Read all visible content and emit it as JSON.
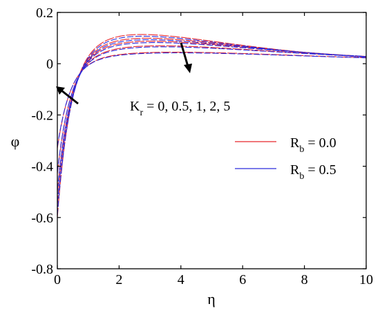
{
  "chart_data": {
    "type": "line",
    "xlabel": "η",
    "ylabel": "φ",
    "xlim": [
      0,
      10
    ],
    "ylim": [
      -0.8,
      0.2
    ],
    "x_ticks": [
      0,
      2,
      4,
      6,
      8,
      10
    ],
    "y_ticks": [
      -0.8,
      -0.6,
      -0.4,
      -0.2,
      0,
      0.2
    ],
    "x_tick_labels": [
      "0",
      "2",
      "4",
      "6",
      "8",
      "10"
    ],
    "y_tick_labels": [
      "-0.8",
      "-0.6",
      "-0.4",
      "-0.2",
      "0",
      "0.2"
    ],
    "grid": false,
    "legend_position": "right",
    "legend": [
      {
        "base": "R",
        "sub": "b",
        "rest": " = 0.0",
        "color": "#e8262b"
      },
      {
        "base": "R",
        "sub": "b",
        "rest": " = 0.5",
        "color": "#2a2adc"
      }
    ],
    "annotation": {
      "base": "K",
      "sub": "r",
      "rest": " = 0, 0.5, 1, 2, 5"
    },
    "curve_params": [
      {
        "k": 0,
        "phi0": -0.6,
        "peak": 0.115,
        "eta_peak": 2.6
      },
      {
        "k": 0.5,
        "phi0": -0.55,
        "peak": 0.1,
        "eta_peak": 2.8
      },
      {
        "k": 1,
        "phi0": -0.5,
        "peak": 0.088,
        "eta_peak": 3.0
      },
      {
        "k": 2,
        "phi0": -0.43,
        "peak": 0.07,
        "eta_peak": 3.3
      },
      {
        "k": 5,
        "phi0": -0.33,
        "peak": 0.045,
        "eta_peak": 3.8
      }
    ],
    "series": [
      {
        "name": "R_b = 0.0",
        "color": "#e8262b",
        "rb": 0.0
      },
      {
        "name": "R_b = 0.5",
        "color": "#2a2adc",
        "rb": 0.5
      }
    ]
  }
}
